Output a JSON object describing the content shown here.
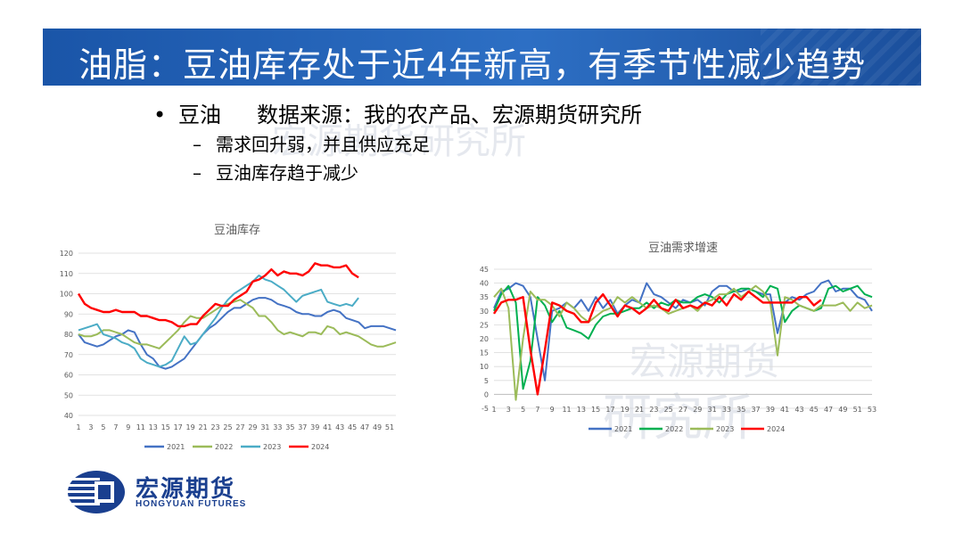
{
  "slide": {
    "title": "油脂：豆油库存处于近4年新高，有季节性减少趋势",
    "bullet_marker": "•",
    "bullet_main": "豆油",
    "bullet_source": "数据来源：我的农产品、宏源期货研究所",
    "sub_marker": "–",
    "sub_bullets": [
      "需求回升弱，并且供应充足",
      "豆油库存趋于减少"
    ]
  },
  "watermark": {
    "line1": "宏源期货",
    "line2": "研究所"
  },
  "logo": {
    "name": "宏源期货",
    "sub": "HONGYUAN FUTURES"
  },
  "colors": {
    "title_bar": "#1a55a8",
    "s2021": "#4472c4",
    "s2022": "#9bbb59",
    "s2023": "#4bacc6",
    "s2024": "#ff0000",
    "alt2022": "#00b050"
  },
  "chart_data": [
    {
      "type": "line",
      "title": "豆油库存",
      "ylim": [
        40,
        120
      ],
      "yticks": [
        40,
        50,
        60,
        70,
        80,
        90,
        100,
        110,
        120
      ],
      "xlim": [
        1,
        52
      ],
      "x_tick_labels": [
        "1",
        "3",
        "5",
        "7",
        "9",
        "11",
        "13",
        "15",
        "17",
        "19",
        "21",
        "23",
        "25",
        "27",
        "29",
        "31",
        "33",
        "35",
        "37",
        "39",
        "41",
        "43",
        "45",
        "47",
        "49",
        "51"
      ],
      "x_tick_values": [
        1,
        3,
        5,
        7,
        9,
        11,
        13,
        15,
        17,
        19,
        21,
        23,
        25,
        27,
        29,
        31,
        33,
        35,
        37,
        39,
        41,
        43,
        45,
        47,
        49,
        51
      ],
      "grid": true,
      "legend": "bottom",
      "series": [
        {
          "name": "2021",
          "color": "#4472c4",
          "x": [
            1,
            2,
            3,
            4,
            5,
            6,
            7,
            8,
            9,
            10,
            11,
            12,
            13,
            14,
            15,
            16,
            17,
            18,
            19,
            20,
            21,
            22,
            23,
            24,
            25,
            26,
            27,
            28,
            29,
            30,
            31,
            32,
            33,
            34,
            35,
            36,
            37,
            38,
            39,
            40,
            41,
            42,
            43,
            44,
            45,
            46,
            47,
            48,
            49,
            50,
            51,
            52
          ],
          "values": [
            80,
            76,
            75,
            74,
            75,
            77,
            79,
            80,
            82,
            81,
            75,
            70,
            68,
            64,
            63,
            64,
            66,
            68,
            72,
            76,
            80,
            83,
            85,
            88,
            91,
            93,
            93,
            95,
            97,
            98,
            98,
            97,
            95,
            94,
            93,
            91,
            90,
            90,
            89,
            89,
            91,
            92,
            91,
            88,
            87,
            86,
            83,
            84,
            84,
            84,
            83,
            82
          ]
        },
        {
          "name": "2022",
          "color": "#9bbb59",
          "x": [
            1,
            2,
            3,
            4,
            5,
            6,
            7,
            8,
            9,
            10,
            11,
            12,
            13,
            14,
            15,
            16,
            17,
            18,
            19,
            20,
            21,
            22,
            23,
            24,
            25,
            26,
            27,
            28,
            29,
            30,
            31,
            32,
            33,
            34,
            35,
            36,
            37,
            38,
            39,
            40,
            41,
            42,
            43,
            44,
            45,
            46,
            47,
            48,
            49,
            50,
            51,
            52
          ],
          "values": [
            80,
            79,
            79,
            80,
            82,
            82,
            81,
            80,
            78,
            76,
            75,
            75,
            74,
            73,
            76,
            79,
            82,
            86,
            89,
            88,
            88,
            90,
            92,
            94,
            95,
            96,
            97,
            95,
            93,
            89,
            89,
            86,
            82,
            80,
            81,
            80,
            79,
            81,
            81,
            80,
            84,
            83,
            80,
            81,
            80,
            79,
            77,
            75,
            74,
            74,
            75,
            76
          ]
        },
        {
          "name": "2023",
          "color": "#4bacc6",
          "x": [
            1,
            2,
            3,
            4,
            5,
            6,
            7,
            8,
            9,
            10,
            11,
            12,
            13,
            14,
            15,
            16,
            17,
            18,
            19,
            20,
            21,
            22,
            23,
            24,
            25,
            26,
            27,
            28,
            29,
            30,
            31,
            32,
            33,
            34,
            35,
            36,
            37,
            38,
            39,
            40,
            41,
            42,
            43,
            44,
            45,
            46
          ],
          "values": [
            82,
            83,
            84,
            85,
            80,
            79,
            78,
            76,
            75,
            73,
            68,
            66,
            65,
            64,
            65,
            67,
            73,
            79,
            75,
            76,
            80,
            84,
            88,
            93,
            97,
            100,
            102,
            104,
            106,
            109,
            107,
            106,
            104,
            102,
            99,
            96,
            99,
            100,
            101,
            102,
            96,
            95,
            94,
            95,
            94,
            98
          ]
        },
        {
          "name": "2024",
          "color": "#ff0000",
          "x": [
            1,
            2,
            3,
            4,
            5,
            6,
            7,
            8,
            9,
            10,
            11,
            12,
            13,
            14,
            15,
            16,
            17,
            18,
            19,
            20,
            21,
            22,
            23,
            24,
            25,
            26,
            27,
            28,
            29,
            30,
            31,
            32,
            33,
            34,
            35,
            36,
            37,
            38,
            39,
            40,
            41,
            42,
            43,
            44,
            45,
            46
          ],
          "values": [
            100,
            95,
            93,
            92,
            91,
            91,
            92,
            91,
            91,
            91,
            89,
            89,
            88,
            87,
            87,
            86,
            84,
            84,
            85,
            85,
            89,
            92,
            95,
            94,
            94,
            97,
            99,
            101,
            106,
            107,
            109,
            112,
            109,
            111,
            110,
            110,
            109,
            111,
            115,
            114,
            114,
            113,
            113,
            114,
            110,
            108
          ]
        }
      ]
    },
    {
      "type": "line",
      "title": "豆油需求增速",
      "ylim": [
        -5,
        45
      ],
      "yticks": [
        -5,
        0,
        5,
        10,
        15,
        20,
        25,
        30,
        35,
        40,
        45
      ],
      "xlim": [
        1,
        53
      ],
      "x_tick_labels": [
        "1",
        "3",
        "5",
        "7",
        "9",
        "11",
        "13",
        "15",
        "17",
        "19",
        "21",
        "23",
        "25",
        "27",
        "29",
        "31",
        "33",
        "35",
        "37",
        "39",
        "41",
        "43",
        "45",
        "47",
        "49",
        "51",
        "53"
      ],
      "x_tick_values": [
        1,
        3,
        5,
        7,
        9,
        11,
        13,
        15,
        17,
        19,
        21,
        23,
        25,
        27,
        29,
        31,
        33,
        35,
        37,
        39,
        41,
        43,
        45,
        47,
        49,
        51,
        53
      ],
      "grid": true,
      "legend": "bottom",
      "series": [
        {
          "name": "2021",
          "color": "#4472c4",
          "x": [
            1,
            2,
            3,
            4,
            5,
            6,
            7,
            8,
            9,
            10,
            11,
            12,
            13,
            14,
            15,
            16,
            17,
            18,
            19,
            20,
            21,
            22,
            23,
            24,
            25,
            26,
            27,
            28,
            29,
            30,
            31,
            32,
            33,
            34,
            35,
            36,
            37,
            38,
            39,
            40,
            41,
            42,
            43,
            44,
            45,
            46,
            47,
            48,
            49,
            50,
            51,
            52,
            53
          ],
          "values": [
            31,
            37,
            38,
            40,
            39,
            35,
            20,
            5,
            30,
            31,
            33,
            31,
            34,
            30,
            35,
            31,
            34,
            29,
            32,
            34,
            33,
            40,
            36,
            35,
            33,
            31,
            34,
            33,
            34,
            32,
            37,
            39,
            39,
            37,
            37,
            38,
            37,
            36,
            36,
            22,
            33,
            35,
            34,
            36,
            37,
            40,
            41,
            37,
            38,
            38,
            35,
            34,
            30
          ]
        },
        {
          "name": "2022",
          "color": "#00b050",
          "x": [
            1,
            2,
            3,
            4,
            5,
            6,
            7,
            8,
            9,
            10,
            11,
            12,
            13,
            14,
            15,
            16,
            17,
            18,
            19,
            20,
            21,
            22,
            23,
            24,
            25,
            26,
            27,
            28,
            29,
            30,
            31,
            32,
            33,
            34,
            35,
            36,
            37,
            38,
            39,
            40,
            41,
            42,
            43,
            44,
            45,
            46,
            47,
            48,
            49,
            50,
            51,
            52,
            53
          ],
          "values": [
            30,
            36,
            39,
            33,
            2,
            12,
            35,
            32,
            26,
            30,
            24,
            23,
            22,
            20,
            25,
            28,
            29,
            29,
            30,
            31,
            31,
            33,
            31,
            33,
            32,
            34,
            33,
            33,
            35,
            36,
            35,
            33,
            36,
            37,
            38,
            38,
            37,
            35,
            39,
            38,
            26,
            30,
            32,
            31,
            30,
            31,
            38,
            39,
            37,
            38,
            39,
            36,
            35
          ]
        },
        {
          "name": "2023",
          "color": "#9bbb59",
          "x": [
            1,
            2,
            3,
            4,
            5,
            6,
            7,
            8,
            9,
            10,
            11,
            12,
            13,
            14,
            15,
            16,
            17,
            18,
            19,
            20,
            21,
            22,
            23,
            24,
            25,
            26,
            27,
            28,
            29,
            30,
            31,
            32,
            33,
            34,
            35,
            36,
            37,
            38,
            39,
            40,
            41,
            42,
            43,
            44,
            45,
            46,
            47,
            48,
            49,
            50,
            51,
            52,
            53
          ],
          "values": [
            35,
            38,
            31,
            -2,
            20,
            37,
            34,
            34,
            32,
            28,
            33,
            31,
            28,
            26,
            28,
            30,
            31,
            35,
            33,
            35,
            33,
            31,
            32,
            31,
            29,
            30,
            31,
            32,
            30,
            33,
            34,
            36,
            36,
            38,
            35,
            37,
            39,
            37,
            33,
            14,
            35,
            34,
            32,
            31,
            30,
            32,
            32,
            32,
            33,
            30,
            33,
            31,
            32
          ]
        },
        {
          "name": "2024",
          "color": "#ff0000",
          "x": [
            1,
            2,
            3,
            4,
            5,
            6,
            7,
            8,
            9,
            10,
            11,
            12,
            13,
            14,
            15,
            16,
            17,
            18,
            19,
            20,
            21,
            22,
            23,
            24,
            25,
            26,
            27,
            28,
            29,
            30,
            31,
            32,
            33,
            34,
            35,
            36,
            37,
            38,
            39,
            40,
            41,
            42,
            43,
            44,
            45,
            46
          ],
          "values": [
            29,
            33,
            34,
            34,
            35,
            16,
            0,
            16,
            33,
            32,
            30,
            29,
            26,
            26,
            33,
            36,
            32,
            28,
            32,
            31,
            29,
            31,
            34,
            31,
            30,
            34,
            31,
            32,
            31,
            33,
            32,
            35,
            32,
            36,
            34,
            37,
            35,
            33,
            33,
            33,
            33,
            33,
            35,
            35,
            32,
            34
          ]
        }
      ]
    }
  ]
}
